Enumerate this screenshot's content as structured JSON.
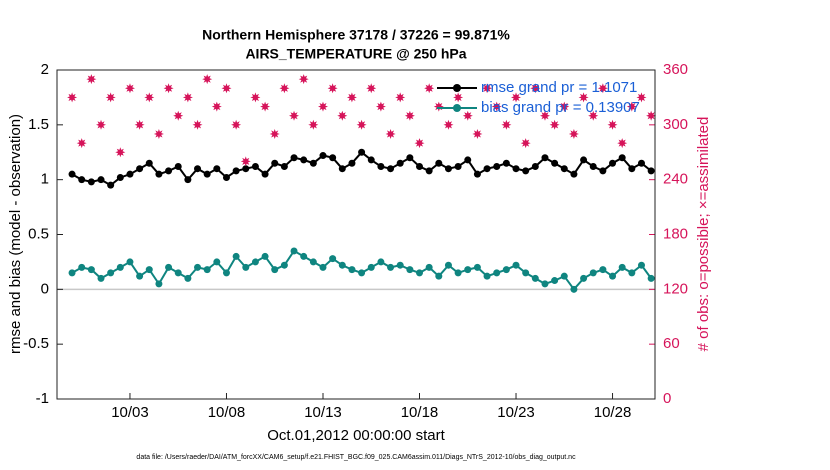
{
  "chart_data": {
    "type": "line",
    "title": [
      "Northern Hemisphere 37178 / 37226 = 99.871%",
      "AIRS_TEMPERATURE @ 250 hPa"
    ],
    "ylabel": "rmse and bias (model - observation)",
    "y2label": "# of obs: o=possible; ×=assimilated",
    "xlabel": "Oct.01,2012 00:00:00 start",
    "footnote": "data file: /Users/raeder/DAI/ATM_forcXX/CAM6_setup/f.e21.FHIST_BGC.f09_025.CAM6assim.011/Diags_NTrS_2012-10/obs_diag_output.nc",
    "legend": "upper right",
    "x": [
      0,
      0.5,
      1,
      1.5,
      2,
      2.5,
      3,
      3.5,
      4,
      4.5,
      5,
      5.5,
      6,
      6.5,
      7,
      7.5,
      8,
      8.5,
      9,
      9.5,
      10,
      10.5,
      11,
      11.5,
      12,
      12.5,
      13,
      13.5,
      14,
      14.5,
      15,
      15.5,
      16,
      16.5,
      17,
      17.5,
      18,
      18.5,
      19,
      19.5,
      20,
      20.5,
      21,
      21.5,
      22,
      22.5,
      23,
      23.5,
      24,
      24.5,
      25,
      25.5,
      26,
      26.5,
      27,
      27.5,
      28,
      28.5,
      29,
      29.5,
      30
    ],
    "xlim": [
      -0.78,
      30.2
    ],
    "xticks": [
      {
        "value": 3,
        "label": "10/03"
      },
      {
        "value": 8,
        "label": "10/08"
      },
      {
        "value": 13,
        "label": "10/13"
      },
      {
        "value": 18,
        "label": "10/18"
      },
      {
        "value": 23,
        "label": "10/23"
      },
      {
        "value": 28,
        "label": "10/28"
      }
    ],
    "ylim": [
      -1,
      2
    ],
    "yticks": [
      -1,
      -0.5,
      0,
      0.5,
      1,
      1.5,
      2
    ],
    "y2lim": [
      0,
      360
    ],
    "y2ticks": [
      0,
      60,
      120,
      180,
      240,
      300,
      360
    ],
    "reference_line": 0,
    "series": [
      {
        "name": "rmse grand pr = 1.1071",
        "color": "#000000",
        "values": [
          1.05,
          1.0,
          0.98,
          1.0,
          0.95,
          1.02,
          1.05,
          1.1,
          1.15,
          1.05,
          1.08,
          1.12,
          1.0,
          1.1,
          1.05,
          1.1,
          1.02,
          1.08,
          1.1,
          1.12,
          1.05,
          1.15,
          1.12,
          1.2,
          1.18,
          1.15,
          1.22,
          1.2,
          1.1,
          1.15,
          1.25,
          1.18,
          1.12,
          1.1,
          1.15,
          1.2,
          1.12,
          1.08,
          1.15,
          1.1,
          1.12,
          1.18,
          1.05,
          1.1,
          1.12,
          1.15,
          1.1,
          1.08,
          1.12,
          1.2,
          1.15,
          1.1,
          1.05,
          1.18,
          1.12,
          1.08,
          1.15,
          1.2,
          1.1,
          1.15,
          1.08
        ]
      },
      {
        "name": "bias grand pr = 0.13907",
        "color": "#0f8580",
        "values": [
          0.15,
          0.2,
          0.18,
          0.1,
          0.15,
          0.2,
          0.25,
          0.12,
          0.18,
          0.05,
          0.2,
          0.15,
          0.1,
          0.2,
          0.18,
          0.25,
          0.15,
          0.3,
          0.2,
          0.25,
          0.3,
          0.18,
          0.22,
          0.35,
          0.3,
          0.25,
          0.2,
          0.28,
          0.22,
          0.18,
          0.15,
          0.2,
          0.25,
          0.2,
          0.22,
          0.18,
          0.15,
          0.2,
          0.12,
          0.22,
          0.15,
          0.18,
          0.2,
          0.12,
          0.15,
          0.18,
          0.22,
          0.15,
          0.1,
          0.05,
          0.08,
          0.12,
          0,
          0.1,
          0.15,
          0.18,
          0.12,
          0.2,
          0.15,
          0.22,
          0.1
        ]
      },
      {
        "axis": "y2",
        "color": "#d6145a",
        "values": [
          330,
          280,
          350,
          300,
          330,
          270,
          340,
          300,
          330,
          290,
          340,
          310,
          330,
          300,
          350,
          320,
          340,
          300,
          260,
          330,
          320,
          290,
          340,
          310,
          350,
          300,
          320,
          340,
          310,
          330,
          300,
          340,
          320,
          290,
          330,
          310,
          280,
          340,
          320,
          300,
          330,
          310,
          290,
          340,
          320,
          300,
          330,
          280,
          340,
          310,
          300,
          320,
          290,
          330,
          310,
          340,
          300,
          280,
          320,
          330,
          310
        ]
      }
    ]
  }
}
